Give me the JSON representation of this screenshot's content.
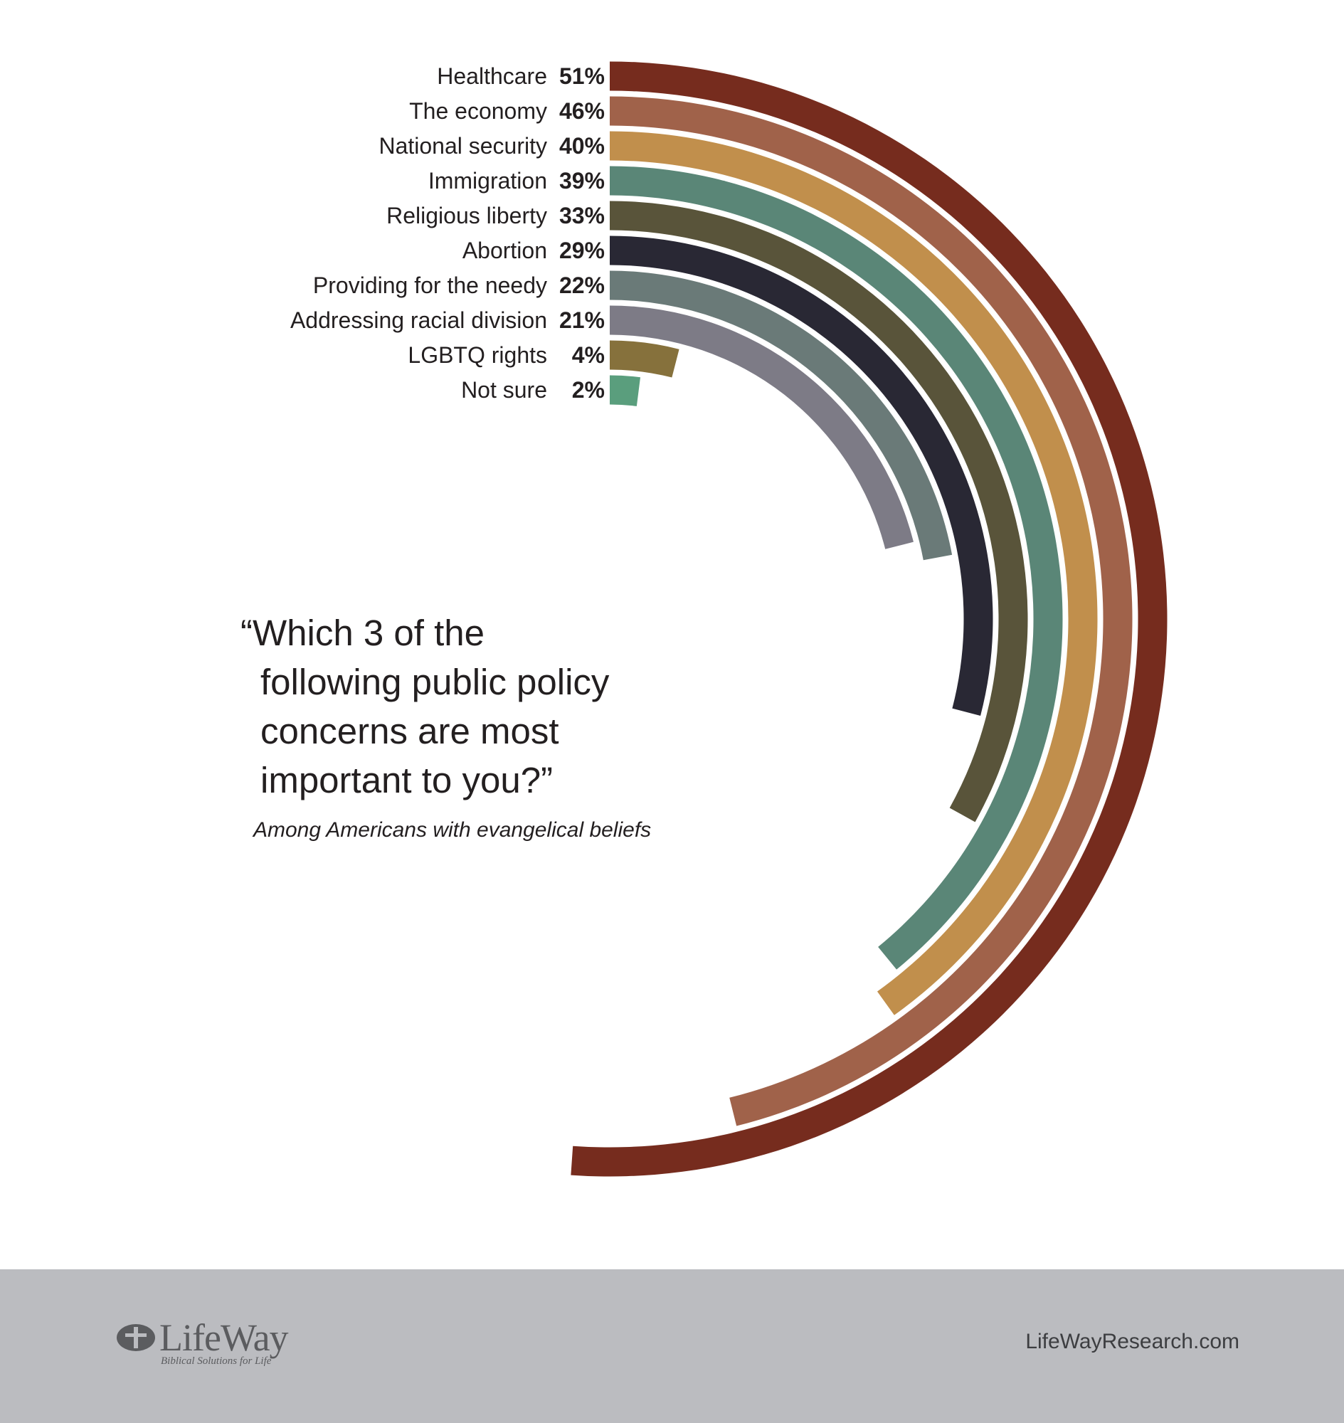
{
  "chart_data": {
    "type": "radial-bar",
    "title": "“Which 3 of the following public policy concerns are most important to you?”",
    "title_lines": [
      "“Which 3 of the",
      "following public policy",
      "concerns are most",
      "important to you?”"
    ],
    "subtitle": "Among Americans with evangelical beliefs",
    "unit": "%",
    "categories": [
      "Healthcare",
      "The economy",
      "National security",
      "Immigration",
      "Religious liberty",
      "Abortion",
      "Providing for the needy",
      "Addressing racial division",
      "LGBTQ rights",
      "Not sure"
    ],
    "values": [
      51,
      46,
      40,
      39,
      33,
      29,
      22,
      21,
      4,
      2
    ],
    "value_labels": [
      "51%",
      "46%",
      "40%",
      "39%",
      "33%",
      "29%",
      "22%",
      "21%",
      "4%",
      "2%"
    ],
    "colors": [
      "#762c1e",
      "#a0624a",
      "#c18f4c",
      "#5a8677",
      "#59543a",
      "#292834",
      "#6a7a78",
      "#7d7b86",
      "#86713c",
      "#5a9e7d"
    ]
  },
  "footer": {
    "brand": "LifeWay",
    "tagline": "Biblical Solutions for Life",
    "website": "LifeWayResearch.com"
  }
}
